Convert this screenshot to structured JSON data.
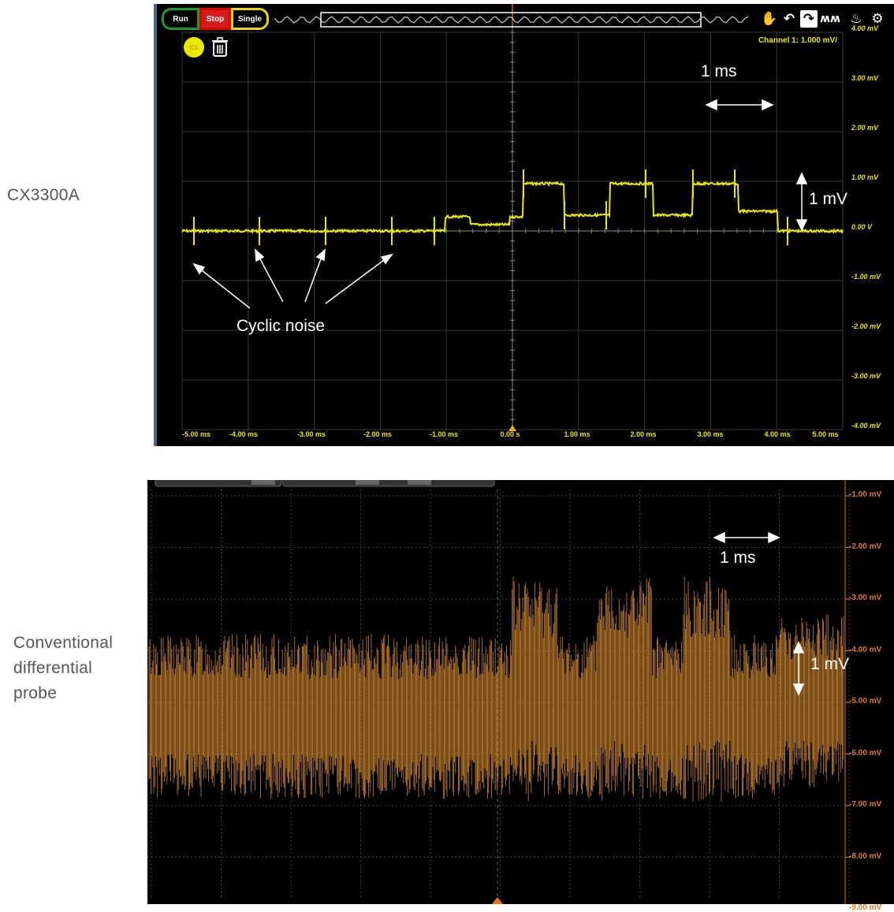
{
  "labels": {
    "top_device": "CX3300A",
    "bottom_device": "Conventional\ndifferential\nprobe"
  },
  "top_scope": {
    "buttons": {
      "run": "Run",
      "stop": "Stop",
      "single": "Single"
    },
    "channel_badge": "C1",
    "channel_label": "Channel 1:  1.000 mV/",
    "y_ticks": [
      "4.00 mV",
      "3.00 mV",
      "2.00 mV",
      "1.00 mV",
      "0.00 V",
      "-1.00 mV",
      "-2.00 mV",
      "-3.00 mV",
      "-4.00 mV"
    ],
    "x_ticks": [
      "-5.00 ms",
      "-4.00 ms",
      "-3.00 ms",
      "-2.00 ms",
      "-1.00 ms",
      "0.00 s",
      "1.00 ms",
      "2.00 ms",
      "3.00 ms",
      "4.00 ms",
      "5.00 ms"
    ],
    "annotations": {
      "time_scale": "1 ms",
      "volt_scale": "1 mV",
      "noise": "Cyclic noise"
    },
    "colors": {
      "trace": "#e8e800",
      "run": "#1e9a2a",
      "stop": "#d21c1c",
      "single": "#e6d800"
    },
    "icons": [
      "hand-icon",
      "undo-icon",
      "redo-icon",
      "waveform-icon",
      "probe-icon",
      "gear-icon"
    ]
  },
  "bottom_scope": {
    "y_ticks": [
      "-1.00 mV",
      "-2.00 mV",
      "-3.00 mV",
      "-4.00 mV",
      "-5.00 mV",
      "-6.00 mV",
      "-7.00 mV",
      "-8.00 mV",
      "-9.00 mV"
    ],
    "annotations": {
      "time_scale": "1 ms",
      "volt_scale": "1 mV"
    },
    "colors": {
      "trace": "#d88a30",
      "axis_text": "#e07a20"
    }
  }
}
